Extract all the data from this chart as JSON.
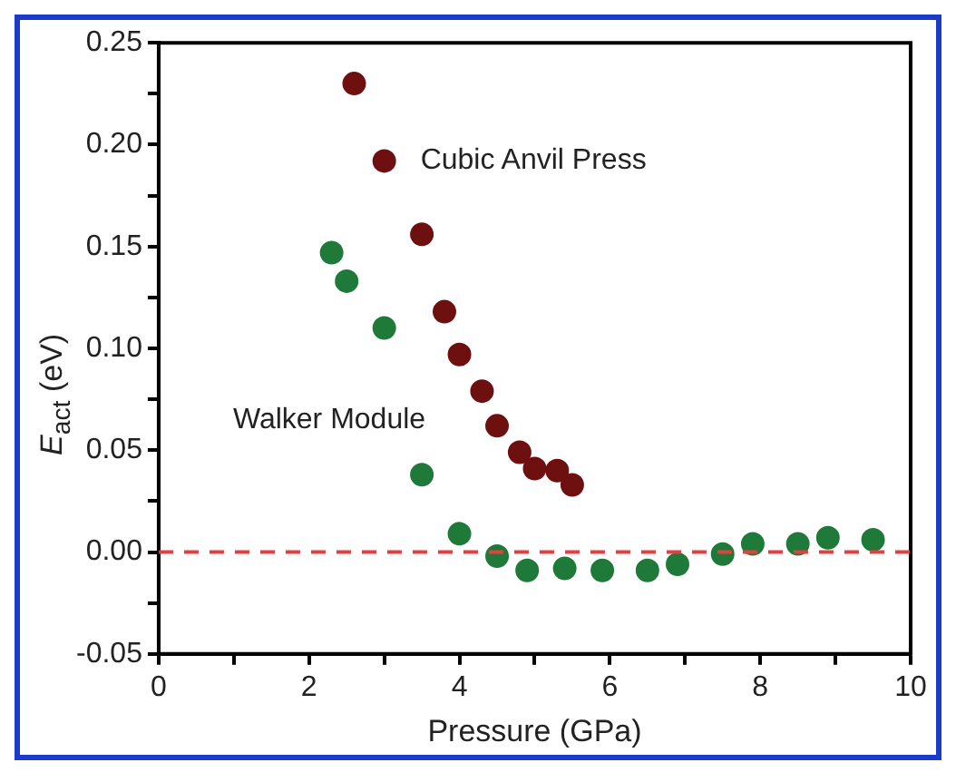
{
  "chart_data": {
    "type": "scatter",
    "xlabel": "Pressure (GPa)",
    "ylabel": "E$_{act}$ (eV)",
    "xlim": [
      0,
      10
    ],
    "ylim": [
      -0.05,
      0.25
    ],
    "xticks": [
      0,
      {
        "value": 1,
        "label": null
      },
      2,
      {
        "value": 3,
        "label": null
      },
      4,
      {
        "value": 5,
        "label": null
      },
      6,
      {
        "value": 7,
        "label": null
      },
      8,
      {
        "value": 9,
        "label": null
      },
      10
    ],
    "yticks": [
      -0.05,
      {
        "value": -0.025,
        "label": null
      },
      {
        "value": 0,
        "label": "0.00"
      },
      {
        "value": 0.025,
        "label": null
      },
      0.05,
      {
        "value": 0.075,
        "label": null
      },
      {
        "value": 0.1,
        "label": "0.10"
      },
      {
        "value": 0.125,
        "label": null
      },
      0.15,
      {
        "value": 0.175,
        "label": null
      },
      {
        "value": 0.2,
        "label": "0.20"
      },
      {
        "value": 0.225,
        "label": null
      },
      0.25
    ],
    "marker": "circle",
    "grid": false,
    "legend": false,
    "series": [
      {
        "name": "Cubic Anvil Press",
        "color": "#6e1010",
        "x": [
          2.6,
          3.0,
          3.5,
          3.8,
          4.0,
          4.3,
          4.5,
          4.8,
          5.0,
          5.3,
          5.5
        ],
        "values": [
          0.23,
          0.192,
          0.156,
          0.118,
          0.097,
          0.079,
          0.062,
          0.049,
          0.041,
          0.04,
          0.033
        ]
      },
      {
        "name": "Walker Module",
        "color": "#1f7a3a",
        "x": [
          2.3,
          2.5,
          3.0,
          3.5,
          4.0,
          4.5,
          4.9,
          5.4,
          5.9,
          6.5,
          6.9,
          7.5,
          7.9,
          8.5,
          8.9,
          9.5
        ],
        "values": [
          0.147,
          0.133,
          0.11,
          0.038,
          0.009,
          -0.002,
          -0.009,
          -0.008,
          -0.009,
          -0.009,
          -0.006,
          -0.001,
          0.004,
          0.004,
          0.007,
          0.006
        ]
      }
    ],
    "ref_lines": [
      {
        "axis": "y",
        "value": 0,
        "color": "#e04040",
        "line_style": "dashed"
      }
    ]
  }
}
